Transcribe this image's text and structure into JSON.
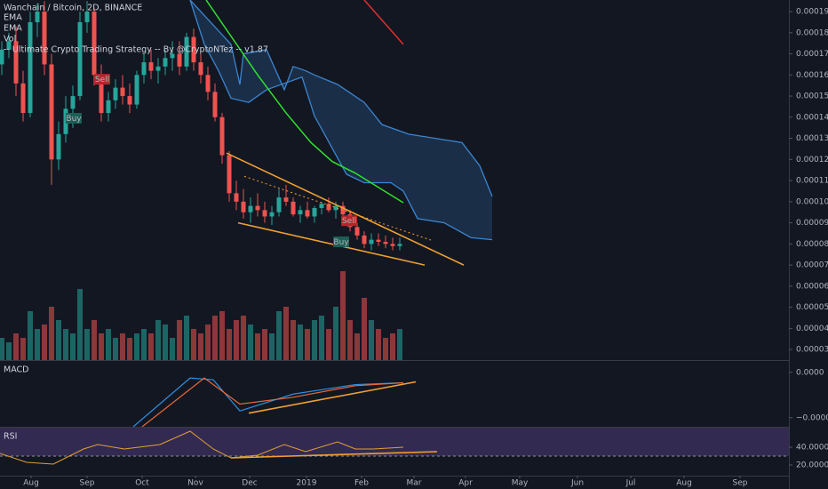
{
  "chart_data": {
    "type": "candlestick",
    "title": "Wanchain / Bitcoin, 2D, BINANCE",
    "indicator_labels": [
      "EMA",
      "EMA",
      "Vol",
      "-- Ultimate Crypto Trading Strategy -- By @CryptoNTez -- v1.87"
    ],
    "xlim": [
      -0.5,
      221.5
    ],
    "xticks": [
      {
        "value": 8.25,
        "label": "Aug"
      },
      {
        "value": 24,
        "label": "Sep"
      },
      {
        "value": 39.5,
        "label": "Oct"
      },
      {
        "value": 54.5,
        "label": "Nov"
      },
      {
        "value": 69.75,
        "label": "Dec"
      },
      {
        "value": 85.75,
        "label": "2019"
      },
      {
        "value": 101.25,
        "label": "Feb"
      },
      {
        "value": 116,
        "label": "Mar"
      },
      {
        "value": 130.5,
        "label": "Apr"
      },
      {
        "value": 145.75,
        "label": "May"
      },
      {
        "value": 162,
        "label": "Jun"
      },
      {
        "value": 177,
        "label": "Jul"
      },
      {
        "value": 192,
        "label": "Aug"
      },
      {
        "value": 207.75,
        "label": "Sep"
      }
    ],
    "ylim": [
      2.5e-05,
      0.0001955
    ],
    "yticks": [
      {
        "value": 3e-05,
        "label": "0.0000300"
      },
      {
        "value": 4e-05,
        "label": "0.0000400"
      },
      {
        "value": 5e-05,
        "label": "0.0000500"
      },
      {
        "value": 6e-05,
        "label": "0.0000600"
      },
      {
        "value": 7e-05,
        "label": "0.0000700"
      },
      {
        "value": 8e-05,
        "label": "0.0000800"
      },
      {
        "value": 9e-05,
        "label": "0.0000900"
      },
      {
        "value": 0.0001,
        "label": "0.0001000"
      },
      {
        "value": 0.00011,
        "label": "0.0001100"
      },
      {
        "value": 0.00012,
        "label": "0.0001200"
      },
      {
        "value": 0.00013,
        "label": "0.0001300"
      },
      {
        "value": 0.00014,
        "label": "0.0001400"
      },
      {
        "value": 0.00015,
        "label": "0.0001500"
      },
      {
        "value": 0.00016,
        "label": "0.0001600"
      },
      {
        "value": 0.00017,
        "label": "0.0001700"
      },
      {
        "value": 0.00018,
        "label": "0.0001800"
      },
      {
        "value": 0.00019,
        "label": "0.0001900"
      }
    ],
    "up_color": "#26a69a",
    "down_color": "#ef5350",
    "candles": {
      "x": [
        0,
        2,
        4,
        6,
        8,
        10,
        12,
        14,
        16,
        18,
        20,
        22,
        24,
        26,
        28,
        30,
        32,
        34,
        36,
        38,
        40,
        42,
        44,
        46,
        48,
        50,
        52,
        54,
        56,
        58,
        60,
        62,
        64,
        66,
        68,
        70,
        72,
        74,
        76,
        78,
        80,
        82,
        84,
        86,
        88,
        90,
        92,
        94,
        96,
        98,
        100,
        102,
        104,
        106,
        108,
        110,
        112
      ],
      "open": [
        0.000165,
        0.000172,
        0.000176,
        0.000156,
        0.000142,
        0.000185,
        0.00019,
        0.000165,
        0.00012,
        0.000132,
        0.000144,
        0.00015,
        0.000185,
        0.00019,
        0.00016,
        0.000142,
        0.000148,
        0.000154,
        0.00015,
        0.000146,
        0.00016,
        0.000166,
        0.000162,
        0.000164,
        0.000168,
        0.00017,
        0.000164,
        0.000178,
        0.000166,
        0.00016,
        0.000152,
        0.00014,
        0.000122,
        0.000104,
        0.0001,
        9.5e-05,
        9.8e-05,
        9.6e-05,
        9.3e-05,
        9.5e-05,
        0.000102,
        0.0001,
        9.4e-05,
        9.6e-05,
        9.3e-05,
        9.7e-05,
        9.9e-05,
        9.6e-05,
        9.8e-05,
        9.4e-05,
        8.8e-05,
        8.4e-05,
        8e-05,
        8.2e-05,
        8.1e-05,
        8e-05,
        7.9e-05
      ],
      "high": [
        0.000176,
        0.00018,
        0.000183,
        0.000162,
        0.00019,
        0.000194,
        0.000195,
        0.00017,
        0.000138,
        0.00015,
        0.000155,
        0.00019,
        0.000195,
        0.000192,
        0.000165,
        0.000152,
        0.000158,
        0.00016,
        0.000156,
        0.000162,
        0.00017,
        0.000172,
        0.000168,
        0.000172,
        0.000176,
        0.000176,
        0.00018,
        0.000182,
        0.00017,
        0.000164,
        0.000156,
        0.000142,
        0.000124,
        0.00011,
        0.000106,
        0.000102,
        0.000104,
        0.0001,
        9.8e-05,
        0.000106,
        0.000108,
        0.000102,
        9.8e-05,
        0.0001,
        9.8e-05,
        0.0001,
        0.000102,
        0.0001,
        0.0001,
        9.6e-05,
        9e-05,
        8.6e-05,
        8.5e-05,
        8.5e-05,
        8.4e-05,
        8.3e-05,
        8.3e-05
      ],
      "low": [
        0.00016,
        0.000168,
        0.00015,
        0.000138,
        0.00014,
        0.000178,
        0.00016,
        0.000108,
        0.000115,
        0.000128,
        0.000135,
        0.000148,
        0.00018,
        0.000155,
        0.000138,
        0.000138,
        0.000144,
        0.000146,
        0.000142,
        0.000144,
        0.000156,
        0.000158,
        0.000156,
        0.00016,
        0.000162,
        0.00016,
        0.000162,
        0.000162,
        0.000156,
        0.000148,
        0.000138,
        0.000118,
        0.0001,
        9.6e-05,
        9.2e-05,
        9e-05,
        9.3e-05,
        9e-05,
        8.9e-05,
        9.3e-05,
        9.8e-05,
        9.3e-05,
        9e-05,
        9.2e-05,
        9e-05,
        9.4e-05,
        9.5e-05,
        9.2e-05,
        9.3e-05,
        8.6e-05,
        8.2e-05,
        7.8e-05,
        7.7e-05,
        7.9e-05,
        7.8e-05,
        7.7e-05,
        7.7e-05
      ],
      "close": [
        0.000172,
        0.000176,
        0.000156,
        0.000142,
        0.000185,
        0.00019,
        0.000165,
        0.00012,
        0.000132,
        0.000144,
        0.00015,
        0.000185,
        0.00019,
        0.00016,
        0.000142,
        0.000148,
        0.000154,
        0.00015,
        0.000146,
        0.00016,
        0.000166,
        0.000162,
        0.000164,
        0.000168,
        0.00017,
        0.000164,
        0.000178,
        0.000166,
        0.00016,
        0.000152,
        0.00014,
        0.000122,
        0.000104,
        0.0001,
        9.5e-05,
        9.8e-05,
        9.6e-05,
        9.3e-05,
        9.5e-05,
        0.000102,
        0.0001,
        9.4e-05,
        9.6e-05,
        9.3e-05,
        9.7e-05,
        9.9e-05,
        9.6e-05,
        9.8e-05,
        9.4e-05,
        8.8e-05,
        8.4e-05,
        8e-05,
        8.2e-05,
        8.1e-05,
        8e-05,
        7.9e-05,
        8e-05
      ]
    },
    "volume": {
      "name": "Vol",
      "ylim": [
        0,
        105
      ],
      "values": [
        25,
        20,
        30,
        25,
        55,
        35,
        40,
        60,
        45,
        35,
        30,
        80,
        35,
        45,
        30,
        35,
        25,
        30,
        25,
        30,
        35,
        30,
        45,
        40,
        25,
        45,
        50,
        35,
        30,
        40,
        50,
        55,
        35,
        45,
        50,
        40,
        30,
        35,
        30,
        55,
        60,
        45,
        40,
        35,
        45,
        50,
        35,
        60,
        100,
        45,
        30,
        70,
        45,
        35,
        25,
        30,
        35
      ]
    },
    "cloud": {
      "color": "#3a86d0",
      "upper": {
        "x": [
          53,
          64.5,
          67,
          68,
          74.5,
          79.5,
          82,
          85.5,
          88,
          94.5,
          102,
          107,
          114.5,
          122,
          129.5,
          134.5,
          138
        ],
        "values": [
          0.0001955,
          0.0001745,
          0.0001555,
          0.00017,
          0.000172,
          0.000153,
          0.000164,
          0.000162,
          0.00016,
          0.0001555,
          0.000147,
          0.0001365,
          0.000132,
          0.00013,
          0.000128,
          0.000117,
          0.0001025
        ]
      },
      "lower": {
        "x": [
          53,
          57,
          61,
          64.5,
          69.5,
          74.5,
          84.5,
          88,
          89.5,
          97,
          102,
          109.5,
          113,
          117,
          124.5,
          132,
          138
        ],
        "values": [
          0.0001955,
          0.0001745,
          0.000162,
          0.000149,
          0.000147,
          0.000153,
          0.000159,
          0.0001405,
          0.000136,
          0.000113,
          0.000109,
          0.000109,
          0.000105,
          9.2e-05,
          9e-05,
          8.3e-05,
          8.2e-05
        ]
      }
    },
    "overlays": [
      {
        "color": "#2ee22e",
        "x": [
          57.5,
          72,
          80,
          87,
          93,
          99.5,
          113
        ],
        "values": [
          0.0001955,
          0.00016,
          0.000142,
          0.000128,
          0.000119,
          0.0001135,
          9.95e-05
        ]
      },
      {
        "color": "#e0302f",
        "x": [
          102,
          113
        ],
        "values": [
          0.0001955,
          0.0001745
        ]
      }
    ],
    "trendlines": [
      {
        "color": "#f0a030",
        "dash": false,
        "x": [
          63.25,
          130
        ],
        "values": [
          0.000123,
          7e-05
        ]
      },
      {
        "color": "#f0a030",
        "dash": false,
        "x": [
          66.5,
          119
        ],
        "values": [
          9e-05,
          7e-05
        ]
      },
      {
        "color": "#f0a030",
        "dash": true,
        "x": [
          68.25,
          120.75
        ],
        "values": [
          0.000112,
          8.18e-05
        ]
      }
    ],
    "annotations": [
      {
        "text": "Sell",
        "x": 28.25,
        "y": 0.000158,
        "color": "#b3262b"
      },
      {
        "text": "Buy",
        "x": 20.25,
        "y": 0.0001395,
        "color": "#1d5e55"
      },
      {
        "text": "Sell",
        "x": 97.75,
        "y": 9.1e-05,
        "color": "#b3262b"
      },
      {
        "text": "Buy",
        "x": 95.5,
        "y": 8.1e-05,
        "color": "#1d5e55"
      }
    ],
    "macd": {
      "title": "MACD",
      "ylim": [
        -2.4e-06,
        5e-07
      ],
      "yticks": [
        {
          "value": 0,
          "label": "0.0000"
        },
        {
          "value": -2e-06,
          "label": "−0.0000"
        }
      ],
      "series": [
        {
          "color": "#2f8fe0",
          "x": [
            37,
            53,
            59.5,
            67,
            82,
            99.5,
            113
          ],
          "values": [
            -2.4e-06,
            -2.5e-07,
            -3.3e-07,
            -1.7e-06,
            -9.6e-07,
            -5.4e-07,
            -4.6e-07
          ]
        },
        {
          "color": "#e8683a",
          "x": [
            39.5,
            57,
            67,
            82,
            99.5,
            113
          ],
          "values": [
            -2.4e-06,
            -2.5e-07,
            -1.4e-06,
            -1.1e-06,
            -5.9e-07,
            -4.6e-07
          ]
        }
      ],
      "trendlines": [
        {
          "color": "#f0a030",
          "dash": false,
          "x": [
            69.5,
            116.5
          ],
          "values": [
            -1.8e-06,
            -4.2e-07
          ]
        }
      ]
    },
    "rsi": {
      "title": "RSI",
      "ylim": [
        8,
        62
      ],
      "band": [
        30,
        70
      ],
      "yticks": [
        {
          "value": 40,
          "label": "40.0000"
        },
        {
          "value": 20,
          "label": "20.0000"
        }
      ],
      "series": [
        {
          "color": "#e0a030",
          "x": [
            -0.5,
            7,
            14.5,
            19.5,
            23,
            27,
            34.5,
            44.5,
            53,
            59.5,
            64.5,
            72,
            79.5,
            85.5,
            94.5,
            99.5,
            104.5,
            113
          ],
          "values": [
            33,
            23,
            21,
            31,
            38,
            43,
            38,
            43,
            58,
            38,
            28,
            31,
            43,
            35,
            46,
            38,
            38,
            40
          ]
        }
      ],
      "trendlines": [
        {
          "color": "#f0a030",
          "dash": false,
          "x": [
            64.5,
            122.5
          ],
          "values": [
            28,
            35
          ]
        }
      ]
    }
  }
}
